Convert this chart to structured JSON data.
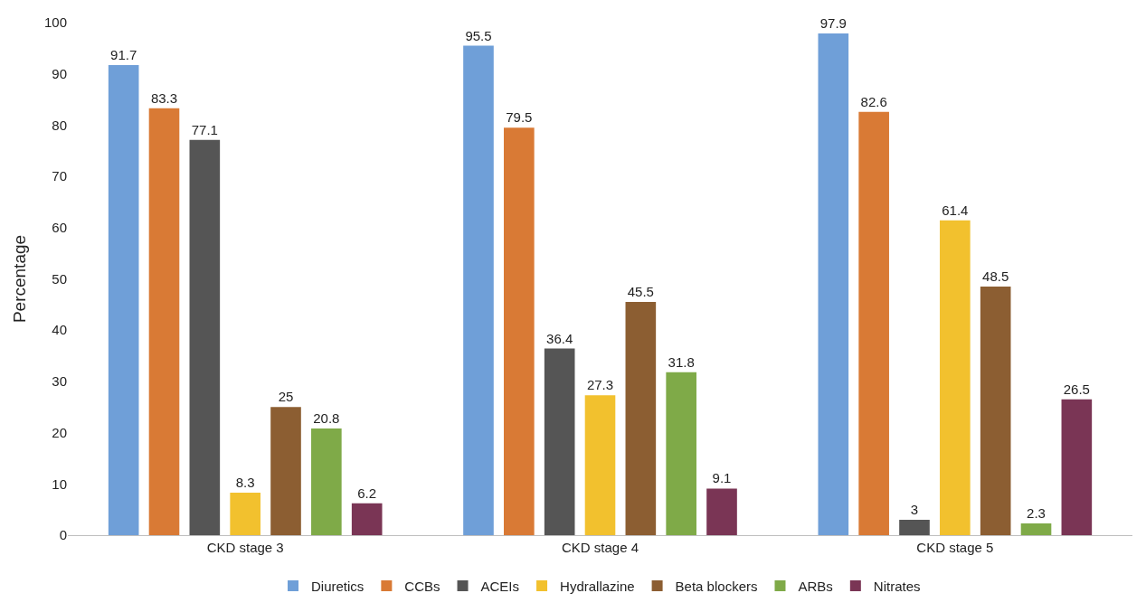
{
  "chart_data": {
    "type": "bar",
    "ylabel": "Percentage",
    "categories": [
      "CKD stage 3",
      "CKD stage 4",
      "CKD stage 5"
    ],
    "series": [
      {
        "name": "Diuretics",
        "color": "#6f9fd8",
        "values": [
          91.7,
          95.5,
          97.9
        ]
      },
      {
        "name": "CCBs",
        "color": "#d97a35",
        "values": [
          83.3,
          79.5,
          82.6
        ]
      },
      {
        "name": "ACEIs",
        "color": "#555555",
        "values": [
          77.1,
          36.4,
          3
        ]
      },
      {
        "name": "Hydrallazine",
        "color": "#f2c12e",
        "values": [
          8.3,
          27.3,
          61.4
        ]
      },
      {
        "name": "Beta blockers",
        "color": "#8c5e32",
        "values": [
          25,
          45.5,
          48.5
        ]
      },
      {
        "name": "ARBs",
        "color": "#7faa48",
        "values": [
          20.8,
          31.8,
          2.3
        ]
      },
      {
        "name": "Nitrates",
        "color": "#7a3555",
        "values": [
          6.2,
          9.1,
          26.5
        ]
      }
    ],
    "ylim": [
      0,
      100
    ],
    "yticks": [
      0,
      10,
      20,
      30,
      40,
      50,
      60,
      70,
      80,
      90,
      100
    ],
    "legend": "bottom",
    "data_labels": true
  }
}
